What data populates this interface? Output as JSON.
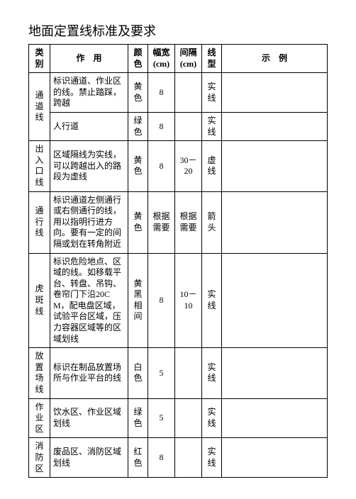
{
  "title": "地面定置线标准及要求",
  "headers": {
    "category": "类别",
    "use": "作　用",
    "color": "颜色",
    "width": "幅宽(cm)",
    "gap": "间隔(cm)",
    "style": "线型",
    "example": "示　例"
  },
  "rows": {
    "r1": {
      "cat": "通道线",
      "use": "标识通道、作业区的线。禁止踏踩，跨越",
      "color": "黄色",
      "width": "8",
      "gap": "",
      "style": "实线",
      "ex": ""
    },
    "r2": {
      "use": "人行道",
      "color": "绿色",
      "width": "8",
      "gap": "",
      "style": "实线",
      "ex": ""
    },
    "r3": {
      "cat": "出入口线",
      "use": "区域隔线为实线，可以跨越出入的路段为虚线",
      "color": "黄色",
      "width": "8",
      "gap": "30－20",
      "style": "虚线",
      "ex": ""
    },
    "r4": {
      "cat": "通行线",
      "use": "标识通道左侧通行或右侧通行的线，用以指明行进方向。要有一定的间隔或划在转角附近",
      "color": "黄色",
      "width": "根据需要",
      "gap": "根据需要",
      "style": "箭头",
      "ex": ""
    },
    "r5": {
      "cat": "虎斑线",
      "use": "标识危险地点、区域的线。如移载平台、转盘、吊钩、卷帘门下沿20CM，配电盘区域，试验平台区域，压力容器区域等的区域划线",
      "color": "黄黑相间",
      "width": "8",
      "gap": "10－10",
      "style": "实线",
      "ex": ""
    },
    "r6": {
      "cat": "放置场线",
      "use": "标识在制品放置场所与作业平台的线",
      "color": "白色",
      "width": "5",
      "gap": "",
      "style": "实线",
      "ex": ""
    },
    "r7": {
      "cat": "作业区",
      "use": "饮水区、作业区域划线",
      "color": "绿色",
      "width": "5",
      "gap": "",
      "style": "实线",
      "ex": ""
    },
    "r8": {
      "cat": "消防区",
      "use": "废品区、消防区域划线",
      "color": "红色",
      "width": "8",
      "gap": "",
      "style": "实线",
      "ex": ""
    }
  }
}
